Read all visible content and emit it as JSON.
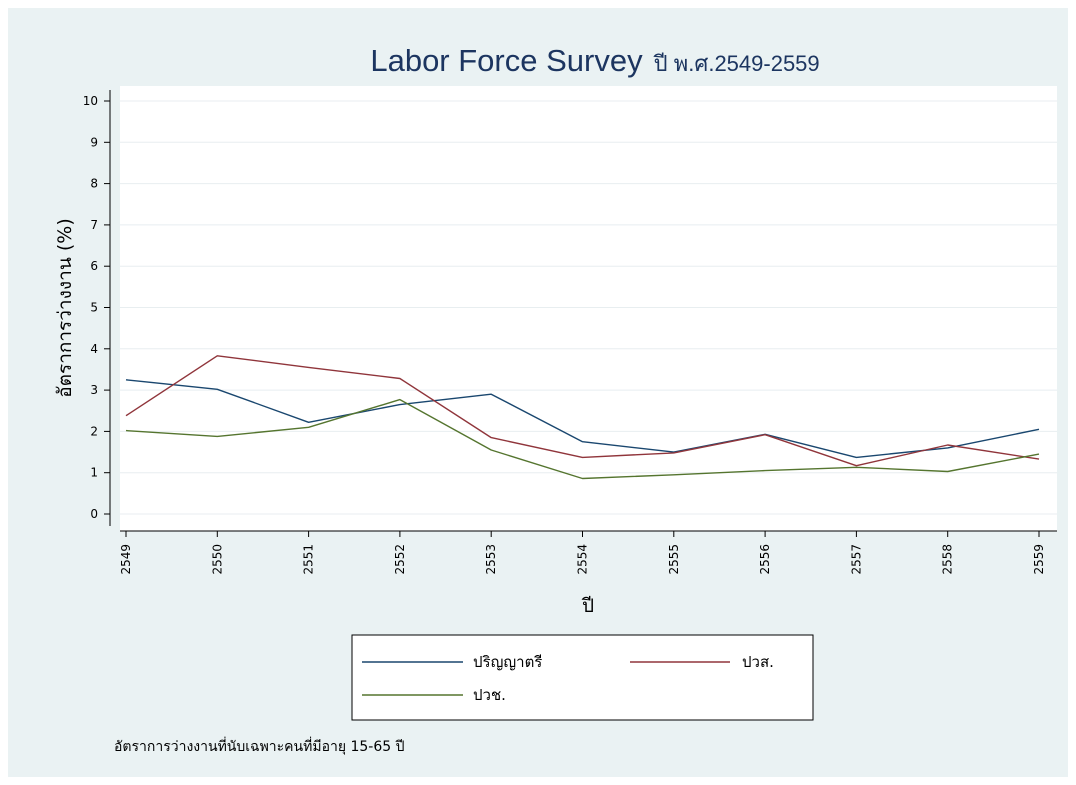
{
  "chart_data": {
    "type": "line",
    "title": "Labor Force Survey",
    "subtitle": "ปี พ.ศ.2549-2559",
    "xlabel": "ปี",
    "ylabel": "อัตราการว่างงาน (%)",
    "x": [
      "2549",
      "2550",
      "2551",
      "2552",
      "2553",
      "2554",
      "2555",
      "2556",
      "2557",
      "2558",
      "2559"
    ],
    "ylim": [
      0,
      10
    ],
    "yticks": [
      "0",
      "1",
      "2",
      "3",
      "4",
      "5",
      "6",
      "7",
      "8",
      "9",
      "10"
    ],
    "grid": true,
    "legend_position": "bottom",
    "series": [
      {
        "name": "ปริญญาตรี",
        "color": "#1a476f",
        "values": [
          3.25,
          3.02,
          2.22,
          2.65,
          2.9,
          1.75,
          1.5,
          1.93,
          1.37,
          1.6,
          2.05
        ]
      },
      {
        "name": "ปวส.",
        "color": "#90353b",
        "values": [
          2.38,
          3.83,
          3.55,
          3.28,
          1.85,
          1.37,
          1.48,
          1.92,
          1.17,
          1.67,
          1.33
        ]
      },
      {
        "name": "ปวช.",
        "color": "#55752f",
        "values": [
          2.02,
          1.88,
          2.1,
          2.77,
          1.55,
          0.86,
          0.95,
          1.05,
          1.13,
          1.03,
          1.45
        ]
      }
    ],
    "note": "อัตราการว่างงานที่นับเฉพาะคนที่มีอายุ 15-65 ปี"
  }
}
